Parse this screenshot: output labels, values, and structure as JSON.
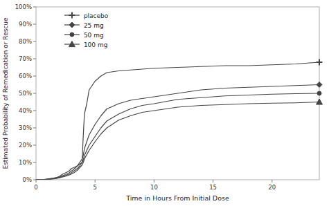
{
  "chart_data": {
    "type": "line",
    "xlabel": "Time in Hours From Initial Dose",
    "ylabel": "Estimated Probability of Remedication or Rescue",
    "x": [
      0,
      0.5,
      1.0,
      1.5,
      1.8,
      2.0,
      2.2,
      2.5,
      2.8,
      3.0,
      3.2,
      3.5,
      3.7,
      3.9,
      4.0,
      4.1,
      4.3,
      4.5,
      5.0,
      5.5,
      6.0,
      7.0,
      8.0,
      9.0,
      10.0,
      12.0,
      14.0,
      16.0,
      18.0,
      20.0,
      22.0,
      24.0
    ],
    "series": [
      {
        "name": "placebo",
        "color": "#444444",
        "marker": "plus",
        "values": [
          0,
          0.0,
          0.005,
          0.01,
          0.015,
          0.02,
          0.03,
          0.04,
          0.05,
          0.065,
          0.07,
          0.08,
          0.09,
          0.1,
          0.25,
          0.38,
          0.44,
          0.52,
          0.57,
          0.6,
          0.62,
          0.63,
          0.635,
          0.64,
          0.645,
          0.65,
          0.655,
          0.66,
          0.66,
          0.665,
          0.67,
          0.68
        ]
      },
      {
        "name": "25 mg",
        "color": "#444444",
        "marker": "diamond",
        "values": [
          0,
          0.0,
          0.004,
          0.008,
          0.012,
          0.016,
          0.022,
          0.03,
          0.04,
          0.05,
          0.06,
          0.08,
          0.1,
          0.12,
          0.14,
          0.18,
          0.22,
          0.26,
          0.32,
          0.37,
          0.41,
          0.44,
          0.46,
          0.47,
          0.48,
          0.5,
          0.52,
          0.53,
          0.535,
          0.54,
          0.545,
          0.55
        ]
      },
      {
        "name": "50 mg",
        "color": "#444444",
        "marker": "circle",
        "values": [
          0,
          0.0,
          0.003,
          0.006,
          0.01,
          0.013,
          0.018,
          0.025,
          0.032,
          0.04,
          0.05,
          0.065,
          0.08,
          0.1,
          0.115,
          0.14,
          0.17,
          0.2,
          0.25,
          0.3,
          0.34,
          0.38,
          0.41,
          0.43,
          0.44,
          0.465,
          0.475,
          0.485,
          0.49,
          0.495,
          0.498,
          0.5
        ]
      },
      {
        "name": "100 mg",
        "color": "#444444",
        "marker": "triangle",
        "values": [
          0,
          0.0,
          0.002,
          0.005,
          0.008,
          0.011,
          0.015,
          0.02,
          0.027,
          0.033,
          0.04,
          0.055,
          0.07,
          0.085,
          0.1,
          0.12,
          0.145,
          0.17,
          0.22,
          0.265,
          0.3,
          0.345,
          0.37,
          0.39,
          0.4,
          0.42,
          0.43,
          0.435,
          0.44,
          0.443,
          0.445,
          0.45
        ]
      }
    ],
    "xlim": [
      0,
      24
    ],
    "ylim": [
      0,
      1.0
    ],
    "xticks": [
      0,
      5,
      10,
      15,
      20
    ],
    "yticks": [
      {
        "value": 0.0,
        "label": "0%"
      },
      {
        "value": 0.1,
        "label": "10%"
      },
      {
        "value": 0.2,
        "label": "20%"
      },
      {
        "value": 0.3,
        "label": "30%"
      },
      {
        "value": 0.4,
        "label": "40%"
      },
      {
        "value": 0.5,
        "label": "50%"
      },
      {
        "value": 0.6,
        "label": "60%"
      },
      {
        "value": 0.7,
        "label": "70%"
      },
      {
        "value": 0.8,
        "label": "80%"
      },
      {
        "value": 0.9,
        "label": "90%"
      },
      {
        "value": 1.0,
        "label": "100%"
      }
    ],
    "grid": false,
    "legend": "upper left"
  }
}
